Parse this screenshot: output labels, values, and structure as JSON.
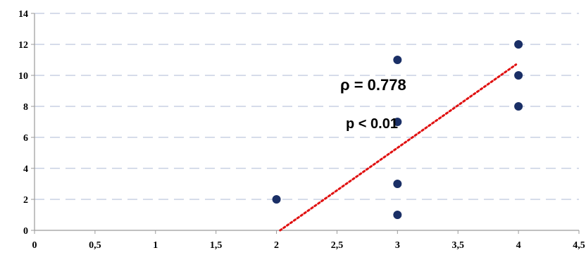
{
  "chart_data": {
    "type": "scatter",
    "x": [
      2,
      3,
      3,
      3,
      3,
      4,
      4,
      4
    ],
    "y": [
      2,
      1,
      3,
      7,
      11,
      8,
      10,
      12
    ],
    "xlim": [
      0,
      4.5
    ],
    "ylim": [
      0,
      14
    ],
    "x_ticks": [
      "0",
      "0,5",
      "1",
      "1,5",
      "2",
      "2,5",
      "3",
      "3,5",
      "4",
      "4,5"
    ],
    "y_ticks": [
      "0",
      "2",
      "4",
      "6",
      "8",
      "10",
      "12",
      "14"
    ],
    "trendline": {
      "x": [
        2.03,
        3.98
      ],
      "y": [
        0,
        10.7
      ]
    },
    "grid": "horizontal dashed",
    "annotations": [
      "ρ  = 0.778",
      "p < 0.01"
    ],
    "colors": {
      "point": "#1a2f66",
      "trendline": "#e01010",
      "grid": "#c9d1e3",
      "axis": "#9a9a9a"
    }
  }
}
